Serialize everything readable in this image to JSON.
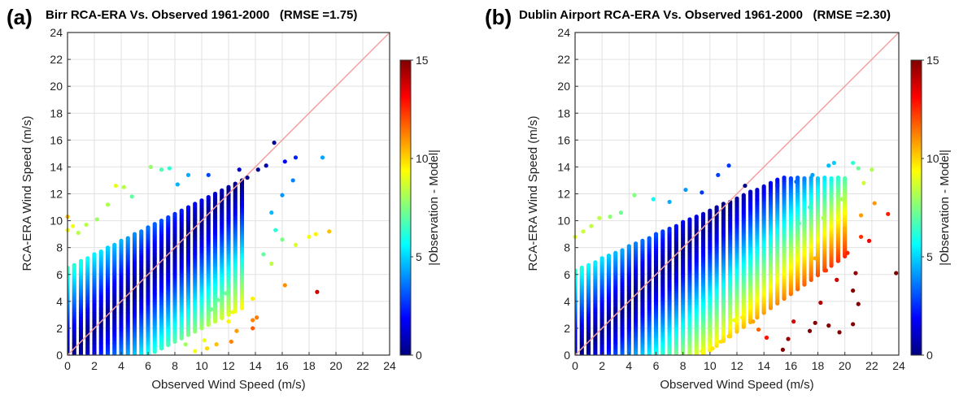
{
  "chart_data": [
    {
      "type": "scatter",
      "panel_label": "(a)",
      "title": "Birr RCA-ERA Vs. Observed 1961-2000",
      "rmse_text": "(RMSE =1.75)",
      "xlabel": "Observed Wind Speed (m/s)",
      "ylabel": "RCA-ERA Wind Speed (m/s)",
      "xlim": [
        0,
        24
      ],
      "ylim": [
        0,
        24
      ],
      "xticks": [
        0,
        2,
        4,
        6,
        8,
        10,
        12,
        14,
        16,
        18,
        20,
        22,
        24
      ],
      "yticks": [
        0,
        2,
        4,
        6,
        8,
        10,
        12,
        14,
        16,
        18,
        20,
        22,
        24
      ],
      "grid": true,
      "reference_line": "1:1",
      "reference_line_color": "#f4a0a0",
      "colorbar": {
        "label": "|Observation - Model|",
        "min": 0,
        "max": 15,
        "ticks": [
          0,
          5,
          10,
          15
        ],
        "colormap": "jet"
      },
      "cloud": {
        "x_max": 13,
        "upper_intercept": 6.5,
        "upper_slope": 0.5,
        "low_start_x": 6,
        "low_slope": 0.5
      },
      "outliers": [
        [
          0,
          10.3
        ],
        [
          0,
          9.3
        ],
        [
          0.4,
          9.6
        ],
        [
          0.8,
          9.1
        ],
        [
          1.4,
          9.7
        ],
        [
          2.2,
          10.1
        ],
        [
          3.0,
          11.2
        ],
        [
          3.6,
          12.6
        ],
        [
          4.2,
          12.5
        ],
        [
          4.8,
          11.8
        ],
        [
          6.2,
          14.0
        ],
        [
          7.0,
          13.8
        ],
        [
          7.6,
          13.9
        ],
        [
          8.2,
          12.7
        ],
        [
          9.0,
          13.4
        ],
        [
          10.5,
          13.4
        ],
        [
          12.8,
          13.8
        ],
        [
          13.4,
          13.2
        ],
        [
          14.2,
          13.8
        ],
        [
          14.8,
          14.1
        ],
        [
          15.4,
          15.8
        ],
        [
          16.2,
          14.4
        ],
        [
          17.0,
          14.7
        ],
        [
          19.0,
          14.7
        ],
        [
          16.8,
          13.0
        ],
        [
          16.0,
          11.9
        ],
        [
          15.2,
          10.6
        ],
        [
          15.5,
          9.3
        ],
        [
          16.0,
          8.6
        ],
        [
          17.0,
          8.2
        ],
        [
          18.0,
          8.8
        ],
        [
          19.5,
          9.2
        ],
        [
          18.5,
          9.0
        ],
        [
          14.6,
          7.5
        ],
        [
          15.2,
          6.8
        ],
        [
          16.2,
          5.2
        ],
        [
          18.6,
          4.7
        ],
        [
          13.8,
          4.2
        ],
        [
          13.8,
          2.6
        ],
        [
          14.1,
          2.8
        ],
        [
          13.8,
          2.0
        ],
        [
          12.0,
          2.5
        ],
        [
          12.6,
          1.8
        ],
        [
          12.2,
          1.0
        ],
        [
          11.1,
          0.8
        ],
        [
          10.2,
          1.1
        ],
        [
          10.4,
          0.5
        ],
        [
          9.5,
          0.3
        ],
        [
          8.8,
          0.8
        ],
        [
          12.5,
          4.8
        ],
        [
          11.8,
          4.6
        ],
        [
          11.2,
          4.1
        ],
        [
          10.7,
          3.4
        ],
        [
          13.0,
          3.8
        ],
        [
          12.3,
          3.2
        ]
      ]
    },
    {
      "type": "scatter",
      "panel_label": "(b)",
      "title": "Dublin Airport RCA-ERA Vs. Observed 1961-2000",
      "rmse_text": "(RMSE =2.30)",
      "xlabel": "Observed Wind Speed (m/s)",
      "ylabel": "RCA-ERA Wind Speed (m/s)",
      "xlim": [
        0,
        24
      ],
      "ylim": [
        0,
        24
      ],
      "xticks": [
        0,
        2,
        4,
        6,
        8,
        10,
        12,
        14,
        16,
        18,
        20,
        22,
        24
      ],
      "yticks": [
        0,
        2,
        4,
        6,
        8,
        10,
        12,
        14,
        16,
        18,
        20,
        22,
        24
      ],
      "grid": true,
      "reference_line": "1:1",
      "reference_line_color": "#f4a0a0",
      "colorbar": {
        "label": "|Observation - Model|",
        "min": 0,
        "max": 15,
        "ticks": [
          0,
          5,
          10,
          15
        ],
        "colormap": "jet"
      },
      "cloud": {
        "x_max": 20,
        "upper_intercept": 6.3,
        "upper_slope": 0.45,
        "low_start_x": 9.5,
        "low_slope": 0.7
      },
      "outliers": [
        [
          0,
          8.8
        ],
        [
          0.6,
          9.2
        ],
        [
          1.2,
          9.6
        ],
        [
          1.8,
          10.2
        ],
        [
          2.6,
          10.3
        ],
        [
          3.4,
          10.6
        ],
        [
          4.4,
          11.9
        ],
        [
          5.8,
          11.6
        ],
        [
          7.0,
          11.4
        ],
        [
          8.2,
          12.3
        ],
        [
          9.4,
          12.1
        ],
        [
          10.6,
          13.4
        ],
        [
          11.4,
          14.1
        ],
        [
          12.6,
          12.6
        ],
        [
          15.0,
          12.6
        ],
        [
          16.4,
          12.9
        ],
        [
          17.6,
          13.4
        ],
        [
          18.8,
          14.1
        ],
        [
          19.2,
          14.3
        ],
        [
          20.6,
          14.3
        ],
        [
          21.0,
          13.9
        ],
        [
          22.0,
          13.8
        ],
        [
          21.4,
          12.8
        ],
        [
          22.2,
          11.3
        ],
        [
          23.2,
          10.5
        ],
        [
          23.8,
          6.1
        ],
        [
          21.8,
          8.5
        ],
        [
          21.2,
          8.8
        ],
        [
          20.8,
          6.1
        ],
        [
          20.6,
          4.8
        ],
        [
          21.0,
          3.8
        ],
        [
          20.6,
          2.3
        ],
        [
          19.6,
          1.7
        ],
        [
          18.8,
          2.2
        ],
        [
          18.2,
          3.9
        ],
        [
          17.4,
          1.8
        ],
        [
          17.8,
          2.4
        ],
        [
          16.2,
          2.5
        ],
        [
          15.8,
          1.2
        ],
        [
          15.4,
          0.4
        ],
        [
          14.2,
          1.3
        ],
        [
          13.6,
          1.9
        ],
        [
          13.2,
          2.5
        ],
        [
          12.4,
          2.8
        ],
        [
          11.8,
          2.6
        ],
        [
          11.4,
          1.4
        ],
        [
          10.8,
          1.0
        ],
        [
          10.2,
          0.5
        ],
        [
          9.4,
          0.3
        ],
        [
          19.4,
          5.6
        ],
        [
          18.6,
          6.3
        ],
        [
          17.8,
          7.2
        ],
        [
          20.2,
          7.6
        ],
        [
          20.0,
          9.4
        ],
        [
          21.2,
          10.4
        ],
        [
          19.8,
          11.6
        ],
        [
          18.4,
          10.2
        ],
        [
          17.4,
          11.0
        ],
        [
          16.6,
          9.8
        ]
      ]
    }
  ]
}
